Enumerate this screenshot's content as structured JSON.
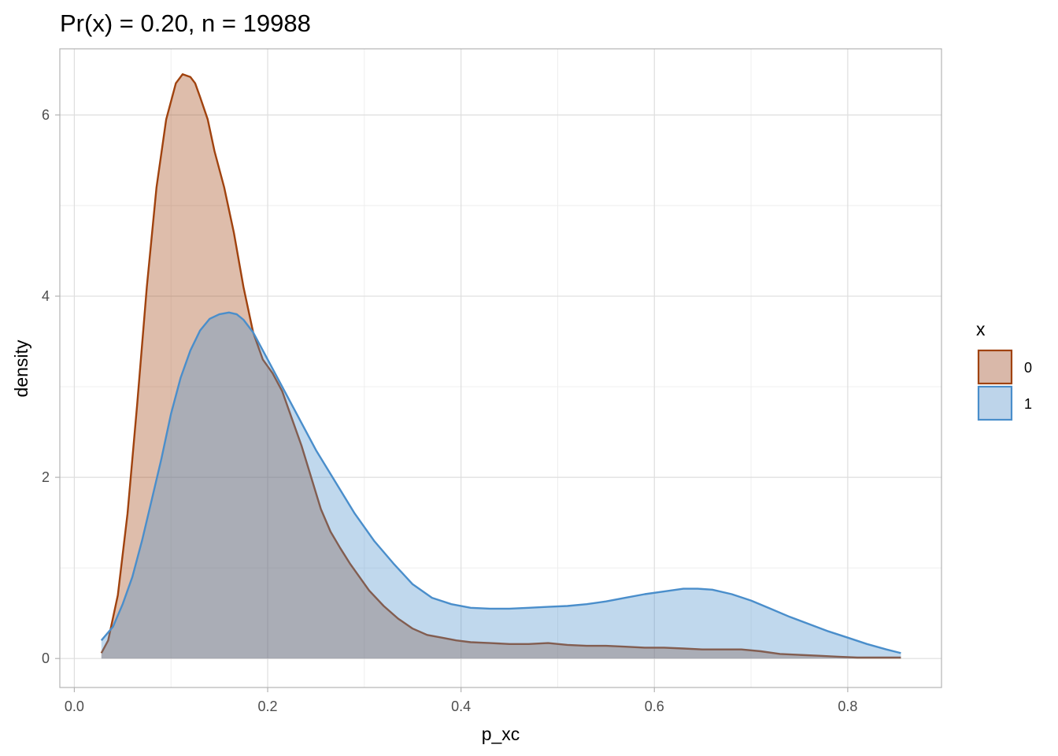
{
  "chart_data": {
    "type": "area",
    "title": "Pr(x) = 0.20, n = 19988",
    "xlabel": "p_xc",
    "ylabel": "density",
    "xlim": [
      -0.015,
      0.897
    ],
    "ylim": [
      -0.32,
      6.73
    ],
    "x_ticks": [
      0.0,
      0.2,
      0.4,
      0.6,
      0.8
    ],
    "x_tick_labels": [
      "0.0",
      "0.2",
      "0.4",
      "0.6",
      "0.8"
    ],
    "y_ticks": [
      0,
      2,
      4,
      6
    ],
    "y_tick_labels": [
      "0",
      "2",
      "4",
      "6"
    ],
    "grid": true,
    "legend": {
      "title": "x",
      "position": "right"
    },
    "series": [
      {
        "name": "0",
        "line_color": "#a0420e",
        "fill_color": "#d9b8a9",
        "x": [
          0.028,
          0.035,
          0.045,
          0.055,
          0.065,
          0.075,
          0.085,
          0.095,
          0.105,
          0.112,
          0.12,
          0.125,
          0.13,
          0.138,
          0.145,
          0.155,
          0.165,
          0.175,
          0.185,
          0.195,
          0.205,
          0.215,
          0.225,
          0.235,
          0.245,
          0.255,
          0.265,
          0.275,
          0.285,
          0.295,
          0.305,
          0.32,
          0.335,
          0.35,
          0.365,
          0.38,
          0.395,
          0.41,
          0.43,
          0.45,
          0.47,
          0.49,
          0.51,
          0.53,
          0.55,
          0.57,
          0.59,
          0.61,
          0.63,
          0.65,
          0.67,
          0.69,
          0.71,
          0.73,
          0.75,
          0.77,
          0.79,
          0.81,
          0.83,
          0.855
        ],
        "y": [
          0.06,
          0.2,
          0.7,
          1.6,
          2.8,
          4.1,
          5.2,
          5.95,
          6.35,
          6.45,
          6.42,
          6.35,
          6.2,
          5.95,
          5.6,
          5.2,
          4.7,
          4.1,
          3.6,
          3.3,
          3.15,
          2.95,
          2.65,
          2.35,
          2.0,
          1.65,
          1.4,
          1.22,
          1.05,
          0.9,
          0.75,
          0.58,
          0.44,
          0.33,
          0.26,
          0.23,
          0.2,
          0.18,
          0.17,
          0.16,
          0.16,
          0.17,
          0.15,
          0.14,
          0.14,
          0.13,
          0.12,
          0.12,
          0.11,
          0.1,
          0.1,
          0.1,
          0.08,
          0.05,
          0.04,
          0.03,
          0.02,
          0.01,
          0.01,
          0.01
        ]
      },
      {
        "name": "1",
        "line_color": "#4a8ecb",
        "fill_color": "#bdd4ea",
        "x": [
          0.028,
          0.04,
          0.05,
          0.06,
          0.07,
          0.08,
          0.09,
          0.1,
          0.11,
          0.12,
          0.13,
          0.14,
          0.15,
          0.16,
          0.168,
          0.175,
          0.185,
          0.195,
          0.205,
          0.215,
          0.23,
          0.25,
          0.27,
          0.29,
          0.31,
          0.33,
          0.35,
          0.37,
          0.39,
          0.41,
          0.43,
          0.45,
          0.47,
          0.49,
          0.51,
          0.53,
          0.55,
          0.57,
          0.59,
          0.61,
          0.63,
          0.645,
          0.66,
          0.68,
          0.7,
          0.72,
          0.74,
          0.76,
          0.78,
          0.8,
          0.82,
          0.84,
          0.855
        ],
        "y": [
          0.2,
          0.35,
          0.6,
          0.9,
          1.3,
          1.75,
          2.2,
          2.7,
          3.1,
          3.4,
          3.62,
          3.75,
          3.8,
          3.82,
          3.8,
          3.74,
          3.6,
          3.4,
          3.2,
          3.0,
          2.7,
          2.3,
          1.95,
          1.6,
          1.3,
          1.05,
          0.82,
          0.67,
          0.6,
          0.56,
          0.55,
          0.55,
          0.56,
          0.57,
          0.58,
          0.6,
          0.63,
          0.67,
          0.71,
          0.74,
          0.77,
          0.77,
          0.76,
          0.71,
          0.64,
          0.55,
          0.46,
          0.38,
          0.3,
          0.23,
          0.16,
          0.1,
          0.06
        ]
      }
    ]
  }
}
